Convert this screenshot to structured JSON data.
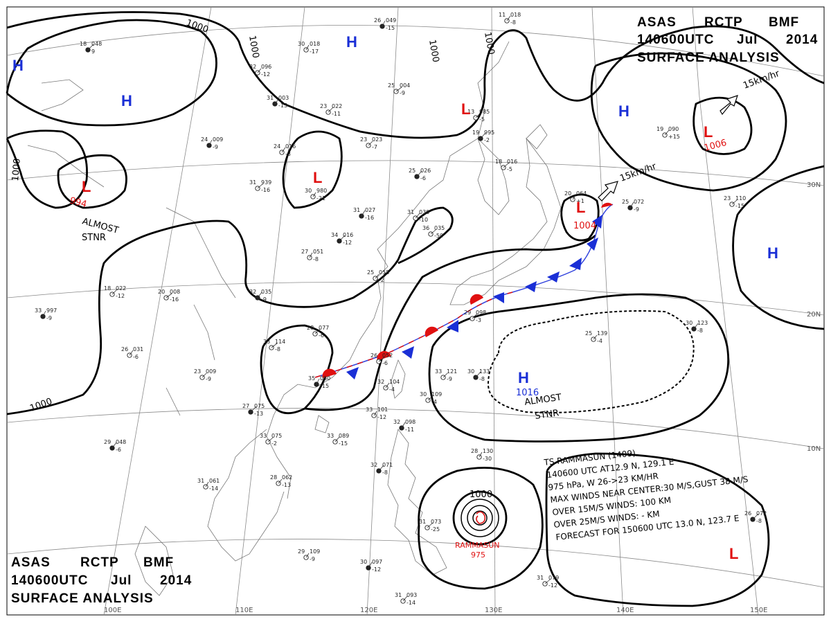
{
  "header_top": {
    "line1": [
      "ASAS",
      "RCTP",
      "BMF"
    ],
    "line2": [
      "140600UTC",
      "Jul",
      "2014"
    ],
    "line3": "SURFACE ANALYSIS"
  },
  "header_bottom": {
    "line1": [
      "ASAS",
      "RCTP",
      "BMF"
    ],
    "line2": [
      "140600UTC",
      "Jul",
      "2014"
    ],
    "line3": "SURFACE ANALYSIS"
  },
  "colors": {
    "high": "#1a2fd6",
    "low": "#e01010",
    "isobar": "#000000",
    "grid": "#8a8a8a"
  },
  "lon_labels": [
    "100E",
    "110E",
    "120E",
    "130E",
    "140E",
    "150E"
  ],
  "lat_labels": [
    "30N",
    "20N",
    "10N"
  ],
  "isobar_labels": [
    "1000",
    "1000",
    "1000",
    "1000",
    "1000",
    "1000",
    "1000"
  ],
  "pressure_centers": [
    {
      "type": "H",
      "value": ""
    },
    {
      "type": "H",
      "value": ""
    },
    {
      "type": "H",
      "value": ""
    },
    {
      "type": "H",
      "value": ""
    },
    {
      "type": "H",
      "value": ""
    },
    {
      "type": "H",
      "value": "1016"
    },
    {
      "type": "L",
      "value": "994"
    },
    {
      "type": "L",
      "value": ""
    },
    {
      "type": "L",
      "value": ""
    },
    {
      "type": "L",
      "value": "1006"
    },
    {
      "type": "L",
      "value": "1004"
    },
    {
      "type": "L",
      "value": ""
    }
  ],
  "notes": {
    "almost_stnr_west": [
      "ALMOST",
      "STNR"
    ],
    "almost_stnr_east": [
      "ALMOST",
      "STNR"
    ],
    "motion_low_ne": "15km/hr",
    "motion_low_japan": "15km/hr"
  },
  "typhoon": {
    "name": "RAMMASUN",
    "pressure": "975",
    "lines": [
      "TS RAMMASUN (1409)",
      "140600 UTC AT12.9 N, 129.1 E",
      "975 hPa, W 26->23 KM/HR",
      "MAX WINDS NEAR CENTER:30 M/S,GUST 38 M/S",
      "OVER 15M/S WINDS: 100 KM",
      "OVER 25M/S WINDS: - KM",
      "FORECAST FOR 150600 UTC 13.0 N, 123.7 E"
    ]
  },
  "stations": [
    [
      "26",
      "049",
      "-15"
    ],
    [
      "11",
      "018",
      "-8"
    ],
    [
      "13",
      "985",
      "-5"
    ],
    [
      "19",
      "995",
      "-2"
    ],
    [
      "18",
      "016",
      "-5"
    ],
    [
      "20",
      "064",
      "+1"
    ],
    [
      "25",
      "072",
      "-9"
    ],
    [
      "19",
      "090",
      "+15"
    ],
    [
      "23",
      "110",
      "-15"
    ],
    [
      "18",
      "048",
      "9"
    ],
    [
      "30",
      "018",
      "-17"
    ],
    [
      "32",
      "096",
      "-12"
    ],
    [
      "31",
      "003",
      "-13"
    ],
    [
      "23",
      "022",
      "-11"
    ],
    [
      "25",
      "004",
      "-9"
    ],
    [
      "24",
      "009",
      "-9"
    ],
    [
      "24",
      "016",
      "-3"
    ],
    [
      "23",
      "023",
      "-7"
    ],
    [
      "25",
      "026",
      "-6"
    ],
    [
      "31",
      "939",
      "-16"
    ],
    [
      "30",
      "980",
      "-21"
    ],
    [
      "31",
      "027",
      "-16"
    ],
    [
      "31",
      "030",
      "-10"
    ],
    [
      "36",
      "035",
      "-50"
    ],
    [
      "34",
      "016",
      "-12"
    ],
    [
      "27",
      "051",
      "-8"
    ],
    [
      "25",
      "058",
      "-2"
    ],
    [
      "32",
      "035",
      "-9"
    ],
    [
      "28",
      "077",
      "-6"
    ],
    [
      "33",
      "114",
      "-8"
    ],
    [
      "35",
      "080",
      "-15"
    ],
    [
      "32",
      "104",
      "-4"
    ],
    [
      "33",
      "121",
      "-9"
    ],
    [
      "30",
      "133",
      "-8"
    ],
    [
      "30",
      "109",
      "-4"
    ],
    [
      "33",
      "101",
      "-12"
    ],
    [
      "32",
      "098",
      "-11"
    ],
    [
      "33",
      "089",
      "-15"
    ],
    [
      "33",
      "075",
      "-2"
    ],
    [
      "27",
      "075",
      "-13"
    ],
    [
      "31",
      "061",
      "-14"
    ],
    [
      "28",
      "062",
      "-13"
    ],
    [
      "29",
      "048",
      "-6"
    ],
    [
      "18",
      "022",
      "-12"
    ],
    [
      "20",
      "008",
      "-16"
    ],
    [
      "33",
      "997",
      "-9"
    ],
    [
      "26",
      "031",
      "-6"
    ],
    [
      "23",
      "009",
      "-9"
    ],
    [
      "32",
      "071",
      "-8"
    ],
    [
      "31",
      "073",
      "-25"
    ],
    [
      "29",
      "109",
      "-9"
    ],
    [
      "30",
      "097",
      "-12"
    ],
    [
      "31",
      "093",
      "-14"
    ],
    [
      "31",
      "079",
      "-12"
    ],
    [
      "26",
      "072",
      "-8"
    ],
    [
      "28",
      "130",
      "-30"
    ],
    [
      "25",
      "139",
      "-4"
    ],
    [
      "30",
      "123",
      "-8"
    ],
    [
      "29",
      "098",
      "-3"
    ],
    [
      "26",
      "052",
      "-6"
    ]
  ]
}
